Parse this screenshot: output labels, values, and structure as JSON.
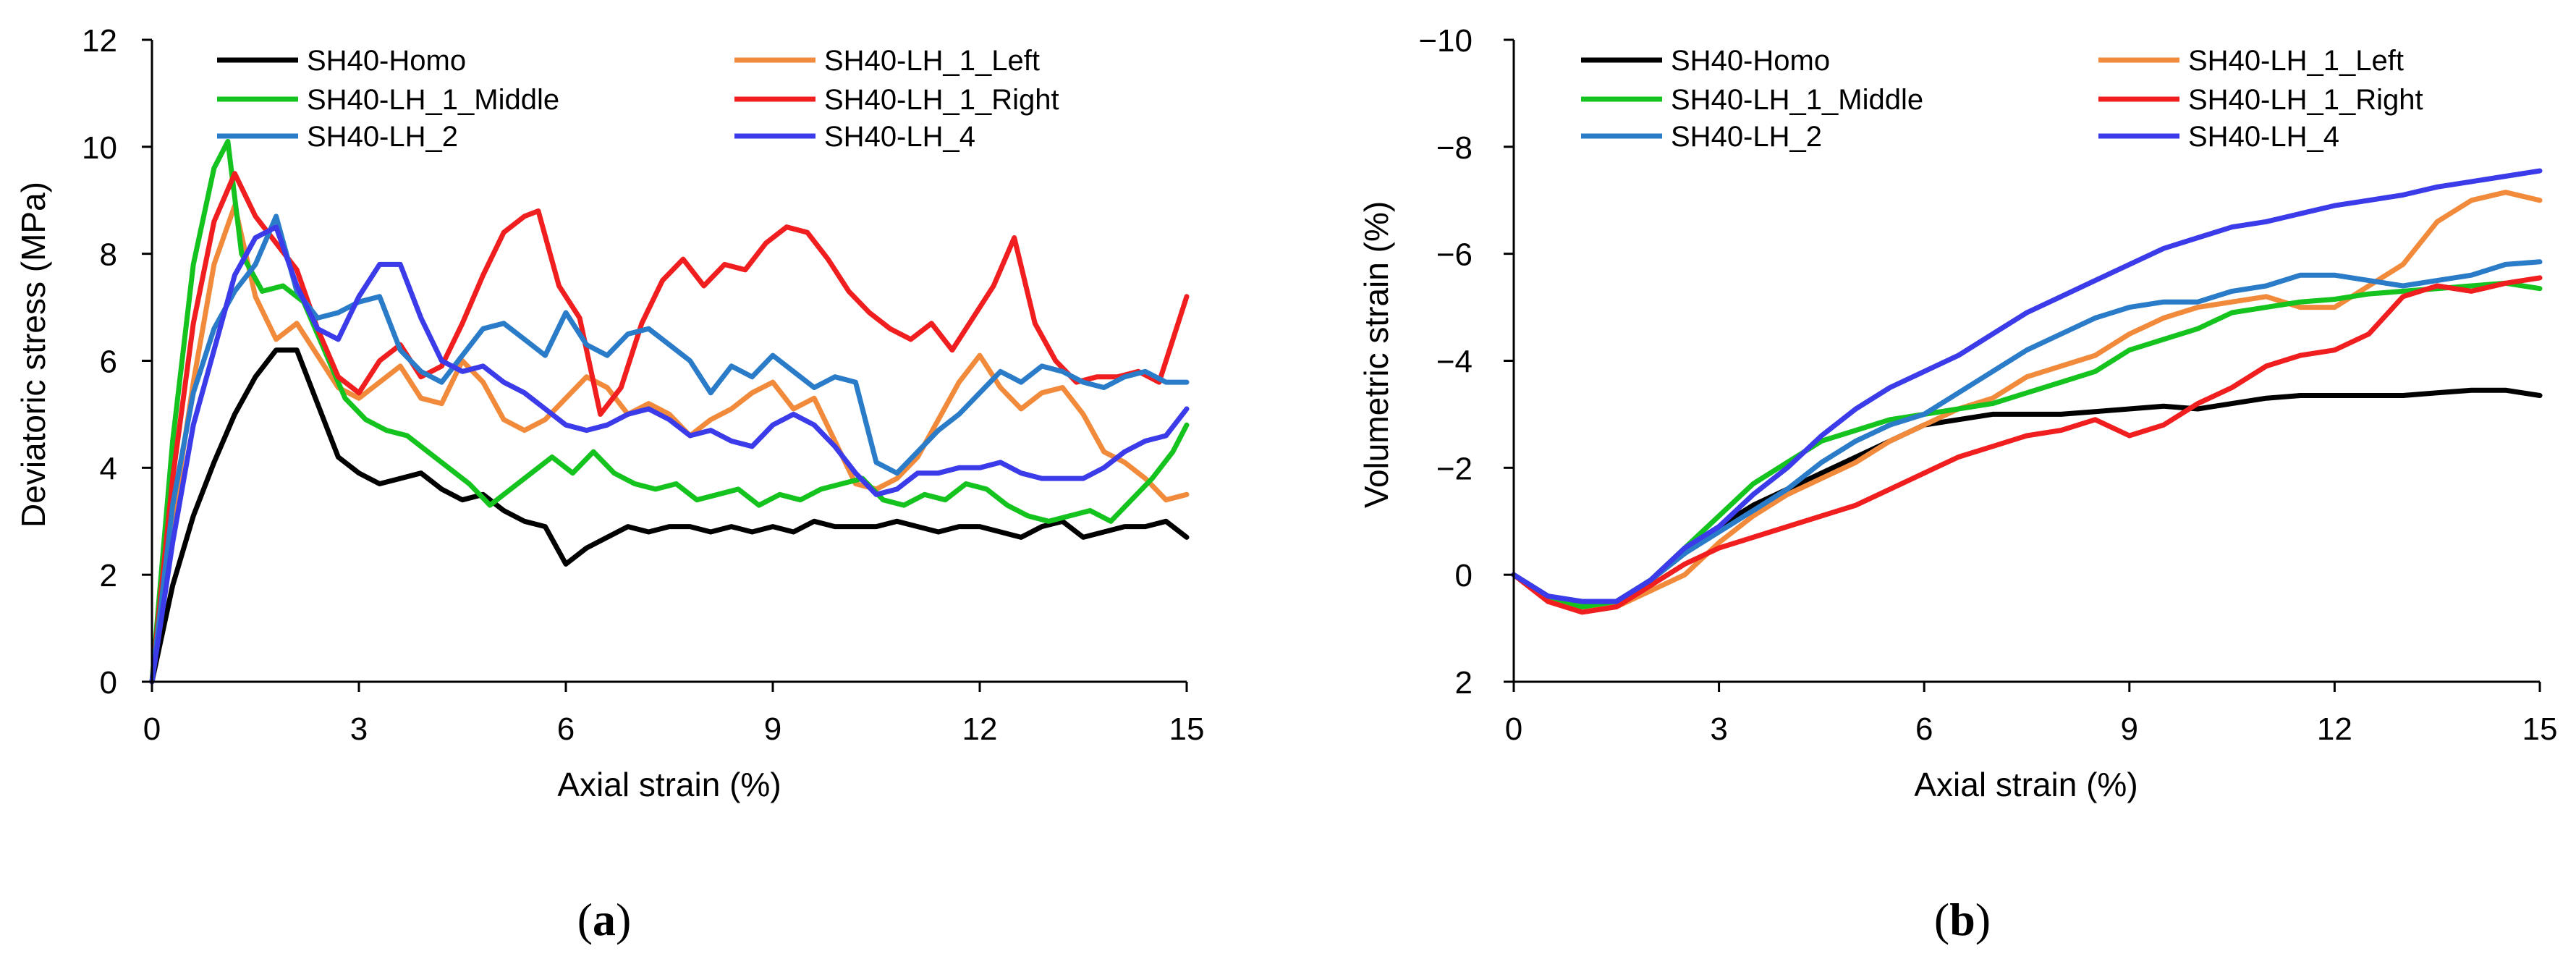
{
  "figure": {
    "panels": [
      {
        "caption_open": "(",
        "caption_letter": "a",
        "caption_close": ")"
      },
      {
        "caption_open": "(",
        "caption_letter": "b",
        "caption_close": ")"
      }
    ]
  },
  "colors": {
    "SH40-Homo": "#000000",
    "SH40-LH_1_Left": "#F28A3C",
    "SH40-LH_1_Middle": "#14C31E",
    "SH40-LH_1_Right": "#F01E1E",
    "SH40-LH_2": "#2A7BC8",
    "SH40-LH_4": "#3B3BEA"
  },
  "chart_data": [
    {
      "type": "line",
      "panel": "a",
      "title": "",
      "xlabel": "Axial strain (%)",
      "ylabel": "Deviatoric stress (MPa)",
      "xlim": [
        0,
        15
      ],
      "ylim": [
        0,
        12
      ],
      "xticks": [
        0,
        3,
        6,
        9,
        12,
        15
      ],
      "yticks": [
        0,
        2,
        4,
        6,
        8,
        10,
        12
      ],
      "legend": "top",
      "legend_order": [
        "SH40-Homo",
        "SH40-LH_1_Left",
        "SH40-LH_1_Middle",
        "SH40-LH_1_Right",
        "SH40-LH_2",
        "SH40-LH_4"
      ],
      "series": [
        {
          "name": "SH40-Homo",
          "x": [
            0,
            0.3,
            0.6,
            0.9,
            1.2,
            1.5,
            1.8,
            2.1,
            2.4,
            2.7,
            3,
            3.3,
            3.6,
            3.9,
            4.2,
            4.5,
            4.8,
            5.1,
            5.4,
            5.7,
            6,
            6.3,
            6.6,
            6.9,
            7.2,
            7.5,
            7.8,
            8.1,
            8.4,
            8.7,
            9,
            9.3,
            9.6,
            9.9,
            10.2,
            10.5,
            10.8,
            11.1,
            11.4,
            11.7,
            12,
            12.3,
            12.6,
            12.9,
            13.2,
            13.5,
            13.8,
            14.1,
            14.4,
            14.7,
            15
          ],
          "y": [
            0,
            1.8,
            3.1,
            4.1,
            5,
            5.7,
            6.2,
            6.2,
            5.2,
            4.2,
            3.9,
            3.7,
            3.8,
            3.9,
            3.6,
            3.4,
            3.5,
            3.2,
            3,
            2.9,
            2.2,
            2.5,
            2.7,
            2.9,
            2.8,
            2.9,
            2.9,
            2.8,
            2.9,
            2.8,
            2.9,
            2.8,
            3,
            2.9,
            2.9,
            2.9,
            3,
            2.9,
            2.8,
            2.9,
            2.9,
            2.8,
            2.7,
            2.9,
            3,
            2.7,
            2.8,
            2.9,
            2.9,
            3,
            2.7
          ]
        },
        {
          "name": "SH40-LH_1_Left",
          "x": [
            0,
            0.3,
            0.6,
            0.9,
            1.2,
            1.5,
            1.8,
            2.1,
            2.4,
            2.7,
            3,
            3.3,
            3.6,
            3.9,
            4.2,
            4.5,
            4.8,
            5.1,
            5.4,
            5.7,
            6,
            6.3,
            6.6,
            6.9,
            7.2,
            7.5,
            7.8,
            8.1,
            8.4,
            8.7,
            9,
            9.3,
            9.6,
            9.9,
            10.2,
            10.5,
            10.8,
            11.1,
            11.4,
            11.7,
            12,
            12.3,
            12.6,
            12.9,
            13.2,
            13.5,
            13.8,
            14.1,
            14.4,
            14.7,
            15
          ],
          "y": [
            0,
            3,
            5.6,
            7.8,
            8.9,
            7.2,
            6.4,
            6.7,
            6.1,
            5.5,
            5.3,
            5.6,
            5.9,
            5.3,
            5.2,
            6,
            5.6,
            4.9,
            4.7,
            4.9,
            5.3,
            5.7,
            5.5,
            5,
            5.2,
            5,
            4.6,
            4.9,
            5.1,
            5.4,
            5.6,
            5.1,
            5.3,
            4.5,
            3.7,
            3.6,
            3.8,
            4.2,
            4.9,
            5.6,
            6.1,
            5.5,
            5.1,
            5.4,
            5.5,
            5,
            4.3,
            4.1,
            3.8,
            3.4,
            3.5
          ]
        },
        {
          "name": "SH40-LH_1_Middle",
          "x": [
            0,
            0.3,
            0.6,
            0.9,
            1.1,
            1.3,
            1.6,
            1.9,
            2.2,
            2.5,
            2.8,
            3.1,
            3.4,
            3.7,
            4,
            4.3,
            4.6,
            4.9,
            5.2,
            5.5,
            5.8,
            6.1,
            6.4,
            6.7,
            7,
            7.3,
            7.6,
            7.9,
            8.2,
            8.5,
            8.8,
            9.1,
            9.4,
            9.7,
            10,
            10.3,
            10.6,
            10.9,
            11.2,
            11.5,
            11.8,
            12.1,
            12.4,
            12.7,
            13,
            13.3,
            13.6,
            13.9,
            14.2,
            14.5,
            14.8,
            15
          ],
          "y": [
            0,
            4.5,
            7.8,
            9.6,
            10.1,
            8,
            7.3,
            7.4,
            7.1,
            6.2,
            5.3,
            4.9,
            4.7,
            4.6,
            4.3,
            4,
            3.7,
            3.3,
            3.6,
            3.9,
            4.2,
            3.9,
            4.3,
            3.9,
            3.7,
            3.6,
            3.7,
            3.4,
            3.5,
            3.6,
            3.3,
            3.5,
            3.4,
            3.6,
            3.7,
            3.8,
            3.4,
            3.3,
            3.5,
            3.4,
            3.7,
            3.6,
            3.3,
            3.1,
            3,
            3.1,
            3.2,
            3,
            3.4,
            3.8,
            4.3,
            4.8
          ]
        },
        {
          "name": "SH40-LH_1_Right",
          "x": [
            0,
            0.3,
            0.6,
            0.9,
            1.2,
            1.5,
            1.8,
            2.1,
            2.4,
            2.7,
            3,
            3.3,
            3.6,
            3.9,
            4.2,
            4.5,
            4.8,
            5.1,
            5.4,
            5.6,
            5.9,
            6.2,
            6.5,
            6.8,
            7.1,
            7.4,
            7.7,
            8,
            8.3,
            8.6,
            8.9,
            9.2,
            9.5,
            9.8,
            10.1,
            10.4,
            10.7,
            11,
            11.3,
            11.6,
            11.9,
            12.2,
            12.5,
            12.8,
            13.1,
            13.4,
            13.7,
            14,
            14.3,
            14.6,
            15
          ],
          "y": [
            0,
            3.8,
            6.7,
            8.6,
            9.5,
            8.7,
            8.2,
            7.7,
            6.6,
            5.7,
            5.4,
            6,
            6.3,
            5.7,
            5.9,
            6.7,
            7.6,
            8.4,
            8.7,
            8.8,
            7.4,
            6.8,
            5,
            5.5,
            6.7,
            7.5,
            7.9,
            7.4,
            7.8,
            7.7,
            8.2,
            8.5,
            8.4,
            7.9,
            7.3,
            6.9,
            6.6,
            6.4,
            6.7,
            6.2,
            6.8,
            7.4,
            8.3,
            6.7,
            6,
            5.6,
            5.7,
            5.7,
            5.8,
            5.6,
            7.2
          ]
        },
        {
          "name": "SH40-LH_2",
          "x": [
            0,
            0.3,
            0.6,
            0.9,
            1.2,
            1.5,
            1.8,
            2.1,
            2.4,
            2.7,
            3,
            3.3,
            3.6,
            3.9,
            4.2,
            4.5,
            4.8,
            5.1,
            5.4,
            5.7,
            6,
            6.3,
            6.6,
            6.9,
            7.2,
            7.5,
            7.8,
            8.1,
            8.4,
            8.7,
            9,
            9.3,
            9.6,
            9.9,
            10.2,
            10.5,
            10.8,
            11.1,
            11.4,
            11.7,
            12,
            12.3,
            12.6,
            12.9,
            13.2,
            13.5,
            13.8,
            14.1,
            14.4,
            14.7,
            15
          ],
          "y": [
            0,
            3.3,
            5.4,
            6.6,
            7.3,
            7.8,
            8.7,
            7.3,
            6.8,
            6.9,
            7.1,
            7.2,
            6.2,
            5.8,
            5.6,
            6.1,
            6.6,
            6.7,
            6.4,
            6.1,
            6.9,
            6.3,
            6.1,
            6.5,
            6.6,
            6.3,
            6,
            5.4,
            5.9,
            5.7,
            6.1,
            5.8,
            5.5,
            5.7,
            5.6,
            4.1,
            3.9,
            4.3,
            4.7,
            5,
            5.4,
            5.8,
            5.6,
            5.9,
            5.8,
            5.6,
            5.5,
            5.7,
            5.8,
            5.6,
            5.6
          ]
        },
        {
          "name": "SH40-LH_4",
          "x": [
            0,
            0.3,
            0.6,
            0.9,
            1.2,
            1.5,
            1.8,
            2.1,
            2.4,
            2.7,
            3,
            3.3,
            3.6,
            3.9,
            4.2,
            4.5,
            4.8,
            5.1,
            5.4,
            5.7,
            6,
            6.3,
            6.6,
            6.9,
            7.2,
            7.5,
            7.8,
            8.1,
            8.4,
            8.7,
            9,
            9.3,
            9.6,
            9.9,
            10.2,
            10.5,
            10.8,
            11.1,
            11.4,
            11.7,
            12,
            12.3,
            12.6,
            12.9,
            13.2,
            13.5,
            13.8,
            14.1,
            14.4,
            14.7,
            15
          ],
          "y": [
            0,
            2.6,
            4.8,
            6.2,
            7.6,
            8.3,
            8.5,
            7.4,
            6.6,
            6.4,
            7.2,
            7.8,
            7.8,
            6.8,
            6,
            5.8,
            5.9,
            5.6,
            5.4,
            5.1,
            4.8,
            4.7,
            4.8,
            5,
            5.1,
            4.9,
            4.6,
            4.7,
            4.5,
            4.4,
            4.8,
            5,
            4.8,
            4.4,
            3.9,
            3.5,
            3.6,
            3.9,
            3.9,
            4,
            4,
            4.1,
            3.9,
            3.8,
            3.8,
            3.8,
            4,
            4.3,
            4.5,
            4.6,
            5.1
          ]
        }
      ]
    },
    {
      "type": "line",
      "panel": "b",
      "title": "",
      "xlabel": "Axial strain (%)",
      "ylabel": "Volumetric strain (%)",
      "xlim": [
        0,
        15
      ],
      "ylim": [
        2,
        -10
      ],
      "y_axis_inverted": true,
      "xticks": [
        0,
        3,
        6,
        9,
        12,
        15
      ],
      "yticks": [
        2,
        0,
        -2,
        -4,
        -6,
        -8,
        -10
      ],
      "legend": "top",
      "legend_order": [
        "SH40-Homo",
        "SH40-LH_1_Left",
        "SH40-LH_1_Middle",
        "SH40-LH_1_Right",
        "SH40-LH_2",
        "SH40-LH_4"
      ],
      "series": [
        {
          "name": "SH40-Homo",
          "x": [
            0,
            0.5,
            1,
            1.5,
            2,
            2.5,
            3,
            3.5,
            4,
            4.5,
            5,
            5.5,
            6,
            6.5,
            7,
            7.5,
            8,
            8.5,
            9,
            9.5,
            10,
            10.5,
            11,
            11.5,
            12,
            12.5,
            13,
            13.5,
            14,
            14.5,
            15
          ],
          "y": [
            0,
            0.4,
            0.6,
            0.5,
            0.1,
            -0.4,
            -0.9,
            -1.3,
            -1.6,
            -1.9,
            -2.2,
            -2.5,
            -2.8,
            -2.9,
            -3,
            -3,
            -3,
            -3.05,
            -3.1,
            -3.15,
            -3.1,
            -3.2,
            -3.3,
            -3.35,
            -3.35,
            -3.35,
            -3.35,
            -3.4,
            -3.45,
            -3.45,
            -3.35
          ]
        },
        {
          "name": "SH40-LH_1_Left",
          "x": [
            0,
            0.5,
            1,
            1.5,
            2,
            2.5,
            3,
            3.5,
            4,
            4.5,
            5,
            5.5,
            6,
            6.5,
            7,
            7.5,
            8,
            8.5,
            9,
            9.5,
            10,
            10.5,
            11,
            11.5,
            12,
            12.5,
            13,
            13.5,
            14,
            14.5,
            15
          ],
          "y": [
            0,
            0.4,
            0.6,
            0.6,
            0.3,
            0,
            -0.6,
            -1.1,
            -1.5,
            -1.8,
            -2.1,
            -2.5,
            -2.8,
            -3.1,
            -3.3,
            -3.7,
            -3.9,
            -4.1,
            -4.5,
            -4.8,
            -5,
            -5.1,
            -5.2,
            -5,
            -5,
            -5.4,
            -5.8,
            -6.6,
            -7,
            -7.15,
            -7
          ]
        },
        {
          "name": "SH40-LH_1_Middle",
          "x": [
            0,
            0.5,
            1,
            1.5,
            2,
            2.5,
            3,
            3.5,
            4,
            4.5,
            5,
            5.5,
            6,
            6.5,
            7,
            7.5,
            8,
            8.5,
            9,
            9.5,
            10,
            10.5,
            11,
            11.5,
            12,
            12.5,
            13,
            13.5,
            14,
            14.5,
            15
          ],
          "y": [
            0,
            0.4,
            0.6,
            0.5,
            0.1,
            -0.5,
            -1.1,
            -1.7,
            -2.1,
            -2.5,
            -2.7,
            -2.9,
            -3,
            -3.1,
            -3.2,
            -3.4,
            -3.6,
            -3.8,
            -4.2,
            -4.4,
            -4.6,
            -4.9,
            -5,
            -5.1,
            -5.15,
            -5.25,
            -5.3,
            -5.35,
            -5.4,
            -5.45,
            -5.35
          ]
        },
        {
          "name": "SH40-LH_1_Right",
          "x": [
            0,
            0.5,
            1,
            1.5,
            2,
            2.5,
            3,
            3.5,
            4,
            4.5,
            5,
            5.5,
            6,
            6.5,
            7,
            7.5,
            8,
            8.5,
            9,
            9.5,
            10,
            10.5,
            11,
            11.5,
            12,
            12.5,
            13,
            13.5,
            14,
            14.5,
            15
          ],
          "y": [
            0,
            0.5,
            0.7,
            0.6,
            0.2,
            -0.2,
            -0.5,
            -0.7,
            -0.9,
            -1.1,
            -1.3,
            -1.6,
            -1.9,
            -2.2,
            -2.4,
            -2.6,
            -2.7,
            -2.9,
            -2.6,
            -2.8,
            -3.2,
            -3.5,
            -3.9,
            -4.1,
            -4.2,
            -4.5,
            -5.2,
            -5.4,
            -5.3,
            -5.45,
            -5.55
          ]
        },
        {
          "name": "SH40-LH_2",
          "x": [
            0,
            0.5,
            1,
            1.5,
            2,
            2.5,
            3,
            3.5,
            4,
            4.5,
            5,
            5.5,
            6,
            6.5,
            7,
            7.5,
            8,
            8.5,
            9,
            9.5,
            10,
            10.5,
            11,
            11.5,
            12,
            12.5,
            13,
            13.5,
            14,
            14.5,
            15
          ],
          "y": [
            0,
            0.4,
            0.5,
            0.5,
            0.1,
            -0.4,
            -0.8,
            -1.2,
            -1.6,
            -2.1,
            -2.5,
            -2.8,
            -3,
            -3.4,
            -3.8,
            -4.2,
            -4.5,
            -4.8,
            -5,
            -5.1,
            -5.1,
            -5.3,
            -5.4,
            -5.6,
            -5.6,
            -5.5,
            -5.4,
            -5.5,
            -5.6,
            -5.8,
            -5.85
          ]
        },
        {
          "name": "SH40-LH_4",
          "x": [
            0,
            0.5,
            1,
            1.5,
            2,
            2.5,
            3,
            3.5,
            4,
            4.5,
            5,
            5.5,
            6,
            6.5,
            7,
            7.5,
            8,
            8.5,
            9,
            9.5,
            10,
            10.5,
            11,
            11.5,
            12,
            12.5,
            13,
            13.5,
            14,
            14.5,
            15
          ],
          "y": [
            0,
            0.4,
            0.5,
            0.5,
            0.1,
            -0.5,
            -0.9,
            -1.5,
            -2,
            -2.6,
            -3.1,
            -3.5,
            -3.8,
            -4.1,
            -4.5,
            -4.9,
            -5.2,
            -5.5,
            -5.8,
            -6.1,
            -6.3,
            -6.5,
            -6.6,
            -6.75,
            -6.9,
            -7,
            -7.1,
            -7.25,
            -7.35,
            -7.45,
            -7.55
          ]
        }
      ]
    }
  ]
}
